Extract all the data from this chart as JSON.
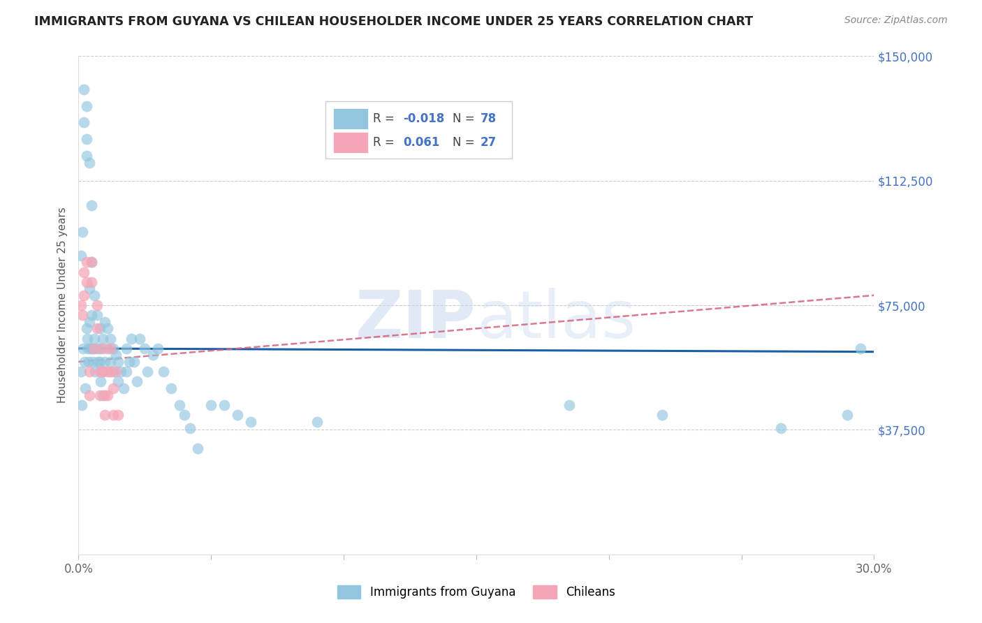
{
  "title": "IMMIGRANTS FROM GUYANA VS CHILEAN HOUSEHOLDER INCOME UNDER 25 YEARS CORRELATION CHART",
  "source": "Source: ZipAtlas.com",
  "ylabel": "Householder Income Under 25 years",
  "xlim": [
    0,
    0.3
  ],
  "ylim": [
    0,
    150000
  ],
  "yticks": [
    0,
    37500,
    75000,
    112500,
    150000
  ],
  "ytick_labels": [
    "",
    "$37,500",
    "$75,000",
    "$112,500",
    "$150,000"
  ],
  "xticks": [
    0.0,
    0.05,
    0.1,
    0.15,
    0.2,
    0.25,
    0.3
  ],
  "legend_blue_r": "-0.018",
  "legend_blue_n": "78",
  "legend_pink_r": "0.061",
  "legend_pink_n": "27",
  "legend_label_blue": "Immigrants from Guyana",
  "legend_label_pink": "Chileans",
  "blue_color": "#92c5de",
  "pink_color": "#f4a6b8",
  "line_blue_color": "#1a5ea8",
  "line_pink_color": "#d4607a",
  "watermark_zip": "ZIP",
  "watermark_atlas": "atlas",
  "blue_x": [
    0.0008,
    0.001,
    0.0012,
    0.0015,
    0.0018,
    0.002,
    0.002,
    0.0022,
    0.0025,
    0.003,
    0.003,
    0.003,
    0.003,
    0.0032,
    0.0035,
    0.0038,
    0.004,
    0.004,
    0.0042,
    0.0045,
    0.005,
    0.005,
    0.005,
    0.0052,
    0.0055,
    0.006,
    0.006,
    0.0062,
    0.007,
    0.007,
    0.0072,
    0.008,
    0.008,
    0.008,
    0.0082,
    0.009,
    0.009,
    0.0092,
    0.01,
    0.01,
    0.011,
    0.011,
    0.012,
    0.012,
    0.013,
    0.013,
    0.014,
    0.015,
    0.015,
    0.016,
    0.017,
    0.018,
    0.018,
    0.019,
    0.02,
    0.021,
    0.022,
    0.023,
    0.025,
    0.026,
    0.028,
    0.03,
    0.032,
    0.035,
    0.038,
    0.04,
    0.042,
    0.045,
    0.05,
    0.055,
    0.06,
    0.065,
    0.09,
    0.185,
    0.22,
    0.265,
    0.29,
    0.295
  ],
  "blue_y": [
    90000,
    55000,
    45000,
    97000,
    62000,
    140000,
    130000,
    58000,
    50000,
    135000,
    125000,
    120000,
    68000,
    65000,
    62000,
    58000,
    118000,
    80000,
    70000,
    62000,
    105000,
    88000,
    72000,
    62000,
    58000,
    78000,
    65000,
    55000,
    72000,
    62000,
    58000,
    68000,
    62000,
    58000,
    52000,
    65000,
    55000,
    48000,
    70000,
    58000,
    68000,
    62000,
    65000,
    58000,
    62000,
    55000,
    60000,
    58000,
    52000,
    55000,
    50000,
    55000,
    62000,
    58000,
    65000,
    58000,
    52000,
    65000,
    62000,
    55000,
    60000,
    62000,
    55000,
    50000,
    45000,
    42000,
    38000,
    32000,
    45000,
    45000,
    42000,
    40000,
    40000,
    45000,
    42000,
    38000,
    42000,
    62000
  ],
  "pink_x": [
    0.0008,
    0.0015,
    0.002,
    0.002,
    0.003,
    0.003,
    0.004,
    0.004,
    0.005,
    0.005,
    0.006,
    0.007,
    0.007,
    0.008,
    0.008,
    0.009,
    0.009,
    0.01,
    0.01,
    0.011,
    0.011,
    0.012,
    0.012,
    0.013,
    0.013,
    0.014,
    0.015
  ],
  "pink_y": [
    75000,
    72000,
    85000,
    78000,
    88000,
    82000,
    55000,
    48000,
    88000,
    82000,
    62000,
    75000,
    68000,
    55000,
    48000,
    62000,
    55000,
    48000,
    42000,
    55000,
    48000,
    62000,
    55000,
    50000,
    42000,
    55000,
    42000
  ]
}
